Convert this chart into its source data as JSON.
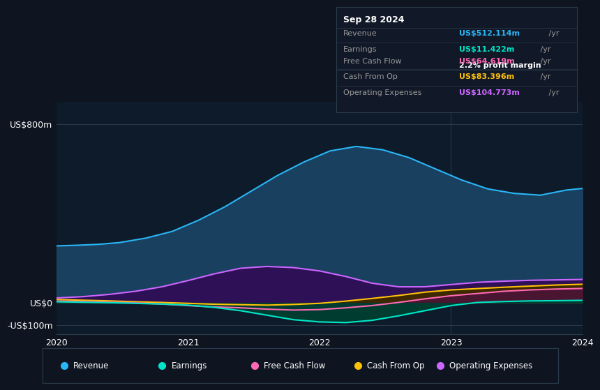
{
  "background_color": "#0e1520",
  "plot_bg_color": "#0d1b2a",
  "box_bg_color": "#111827",
  "separator_color": "#2a3a4a",
  "title_box": {
    "date": "Sep 28 2024",
    "rows": [
      {
        "label": "Revenue",
        "value": "US$512.114m",
        "value_color": "#29b6f6",
        "suffix": " /yr",
        "extra": null
      },
      {
        "label": "Earnings",
        "value": "US$11.422m",
        "value_color": "#00e5c8",
        "suffix": " /yr",
        "extra": "2.2% profit margin"
      },
      {
        "label": "Free Cash Flow",
        "value": "US$64.619m",
        "value_color": "#ff69b4",
        "suffix": " /yr",
        "extra": null
      },
      {
        "label": "Cash From Op",
        "value": "US$83.396m",
        "value_color": "#ffc107",
        "suffix": " /yr",
        "extra": null
      },
      {
        "label": "Operating Expenses",
        "value": "US$104.773m",
        "value_color": "#cc66ff",
        "suffix": " /yr",
        "extra": null
      }
    ]
  },
  "x_ticks": [
    "2020",
    "2021",
    "2022",
    "2023",
    "2024"
  ],
  "y_ticks": [
    "-US$100m",
    "US$0",
    "US$800m"
  ],
  "y_values": [
    -100,
    0,
    800
  ],
  "ylim": [
    -140,
    900
  ],
  "series_order": [
    "revenue",
    "operating_expenses",
    "cash_from_op",
    "free_cash_flow",
    "earnings"
  ],
  "series": {
    "revenue": {
      "color": "#29b6f6",
      "fill_color": "#1a4060",
      "label": "Revenue",
      "x": [
        0,
        4,
        8,
        12,
        17,
        22,
        27,
        32,
        37,
        42,
        47,
        52,
        57,
        62,
        67,
        72,
        77,
        82,
        87,
        92,
        97,
        100
      ],
      "y": [
        255,
        258,
        262,
        270,
        290,
        320,
        370,
        430,
        500,
        570,
        630,
        680,
        700,
        685,
        650,
        600,
        550,
        510,
        490,
        482,
        505,
        512
      ]
    },
    "earnings": {
      "color": "#00e5c8",
      "fill_color": "#003d30",
      "label": "Earnings",
      "x": [
        0,
        5,
        10,
        15,
        20,
        25,
        30,
        35,
        40,
        45,
        50,
        55,
        60,
        65,
        70,
        75,
        80,
        85,
        90,
        95,
        100
      ],
      "y": [
        5,
        3,
        1,
        -2,
        -5,
        -10,
        -20,
        -35,
        -55,
        -75,
        -85,
        -88,
        -78,
        -58,
        -35,
        -12,
        2,
        6,
        9,
        10,
        11.4
      ]
    },
    "free_cash_flow": {
      "color": "#ff69b4",
      "fill_color": "#4a1530",
      "label": "Free Cash Flow",
      "x": [
        0,
        5,
        10,
        15,
        20,
        25,
        30,
        35,
        40,
        45,
        50,
        55,
        60,
        65,
        70,
        75,
        80,
        85,
        90,
        95,
        100
      ],
      "y": [
        8,
        6,
        3,
        0,
        -5,
        -12,
        -18,
        -22,
        -28,
        -32,
        -30,
        -22,
        -12,
        2,
        18,
        32,
        42,
        52,
        58,
        62,
        64.6
      ]
    },
    "cash_from_op": {
      "color": "#ffc107",
      "fill_color": "#3d2800",
      "label": "Cash From Op",
      "x": [
        0,
        5,
        10,
        15,
        20,
        25,
        30,
        35,
        40,
        45,
        50,
        55,
        60,
        65,
        70,
        75,
        80,
        85,
        90,
        95,
        100
      ],
      "y": [
        15,
        12,
        9,
        5,
        2,
        -2,
        -6,
        -8,
        -10,
        -7,
        -2,
        8,
        20,
        33,
        48,
        58,
        64,
        70,
        75,
        80,
        83.4
      ]
    },
    "operating_expenses": {
      "color": "#cc66ff",
      "fill_color": "#2d1055",
      "label": "Operating Expenses",
      "x": [
        0,
        5,
        10,
        15,
        20,
        25,
        30,
        35,
        40,
        45,
        50,
        55,
        60,
        65,
        70,
        75,
        80,
        85,
        90,
        95,
        100
      ],
      "y": [
        22,
        28,
        38,
        52,
        72,
        100,
        130,
        155,
        163,
        158,
        143,
        118,
        88,
        72,
        72,
        82,
        92,
        97,
        101,
        103,
        104.8
      ]
    }
  },
  "legend": [
    {
      "label": "Revenue",
      "color": "#29b6f6"
    },
    {
      "label": "Earnings",
      "color": "#00e5c8"
    },
    {
      "label": "Free Cash Flow",
      "color": "#ff69b4"
    },
    {
      "label": "Cash From Op",
      "color": "#ffc107"
    },
    {
      "label": "Operating Expenses",
      "color": "#cc66ff"
    }
  ]
}
